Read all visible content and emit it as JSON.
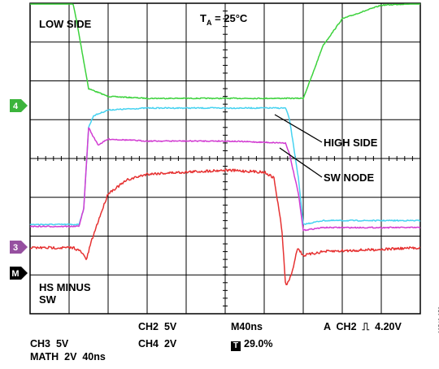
{
  "title": "T",
  "title_subscript": "A",
  "title_rest": " = 25°C",
  "panel_labels": {
    "low_side": "LOW SIDE",
    "high_side": "HIGH SIDE",
    "sw_node": "SW NODE",
    "hs_minus_sw_line1": "HS MINUS",
    "hs_minus_sw_line2": "SW"
  },
  "channel_markers": {
    "ch4": "4",
    "ch3": "3",
    "math": "M"
  },
  "colors": {
    "ch4_low_side": "#3cd23c",
    "ch2_high_side": "#46d2f0",
    "ch3_sw_node": "#d23cd2",
    "math_hs_minus_sw": "#e63232",
    "marker_ch4": "#3cb43c",
    "marker_ch3": "#9650a0",
    "marker_math": "#000000"
  },
  "readouts": {
    "ch2": "CH2  5V",
    "ch4": "CH4  2V",
    "ch3": "CH3  5V",
    "math": "MATH  2V  40ns",
    "timebase": "M40ns",
    "trigger_position": "29.0%",
    "trigger_prefix_icon": "T",
    "trigger_setting": "A  CH2  ⎍  4.20V"
  },
  "doc_id": "08548-058",
  "chart_data": {
    "type": "line",
    "x_unit": "ns",
    "time_per_division": 40,
    "divisions_x": 10,
    "divisions_y": 8,
    "grid": true,
    "series": [
      {
        "name": "LOW SIDE",
        "channel": "CH4",
        "volts_per_div": 2,
        "x": [
          0,
          40,
          48,
          60,
          80,
          120,
          200,
          270,
          280,
          290,
          300,
          320,
          360,
          400
        ],
        "y_div_from_top": [
          -0.5,
          -0.5,
          0.5,
          2.2,
          2.4,
          2.45,
          2.45,
          2.45,
          2.45,
          1.8,
          1.1,
          0.4,
          0.05,
          0.0
        ]
      },
      {
        "name": "HIGH SIDE",
        "channel": "CH2",
        "volts_per_div": 5,
        "x": [
          0,
          50,
          55,
          60,
          65,
          80,
          120,
          200,
          262,
          266,
          275,
          280,
          300,
          400
        ],
        "y_div_from_top": [
          5.7,
          5.7,
          5.3,
          3.2,
          2.9,
          2.75,
          2.7,
          2.7,
          2.7,
          3.0,
          4.5,
          5.7,
          5.6,
          5.6
        ]
      },
      {
        "name": "SW NODE",
        "channel": "CH3",
        "volts_per_div": 5,
        "x": [
          0,
          50,
          55,
          60,
          65,
          70,
          80,
          120,
          200,
          262,
          266,
          275,
          280,
          300,
          400
        ],
        "y_div_from_top": [
          5.75,
          5.75,
          5.3,
          3.2,
          3.45,
          3.65,
          3.5,
          3.55,
          3.55,
          3.6,
          3.9,
          4.9,
          5.85,
          5.78,
          5.78
        ]
      },
      {
        "name": "HS MINUS SW",
        "channel": "MATH",
        "volts_per_div": 2,
        "x": [
          0,
          45,
          52,
          58,
          62,
          70,
          80,
          100,
          120,
          160,
          200,
          240,
          250,
          258,
          262,
          268,
          274,
          280,
          300,
          400
        ],
        "y_div_from_top": [
          6.3,
          6.3,
          6.4,
          6.6,
          6.2,
          5.6,
          4.9,
          4.55,
          4.4,
          4.35,
          4.3,
          4.35,
          4.5,
          5.8,
          7.3,
          7.0,
          6.3,
          6.5,
          6.4,
          6.3
        ]
      }
    ]
  }
}
